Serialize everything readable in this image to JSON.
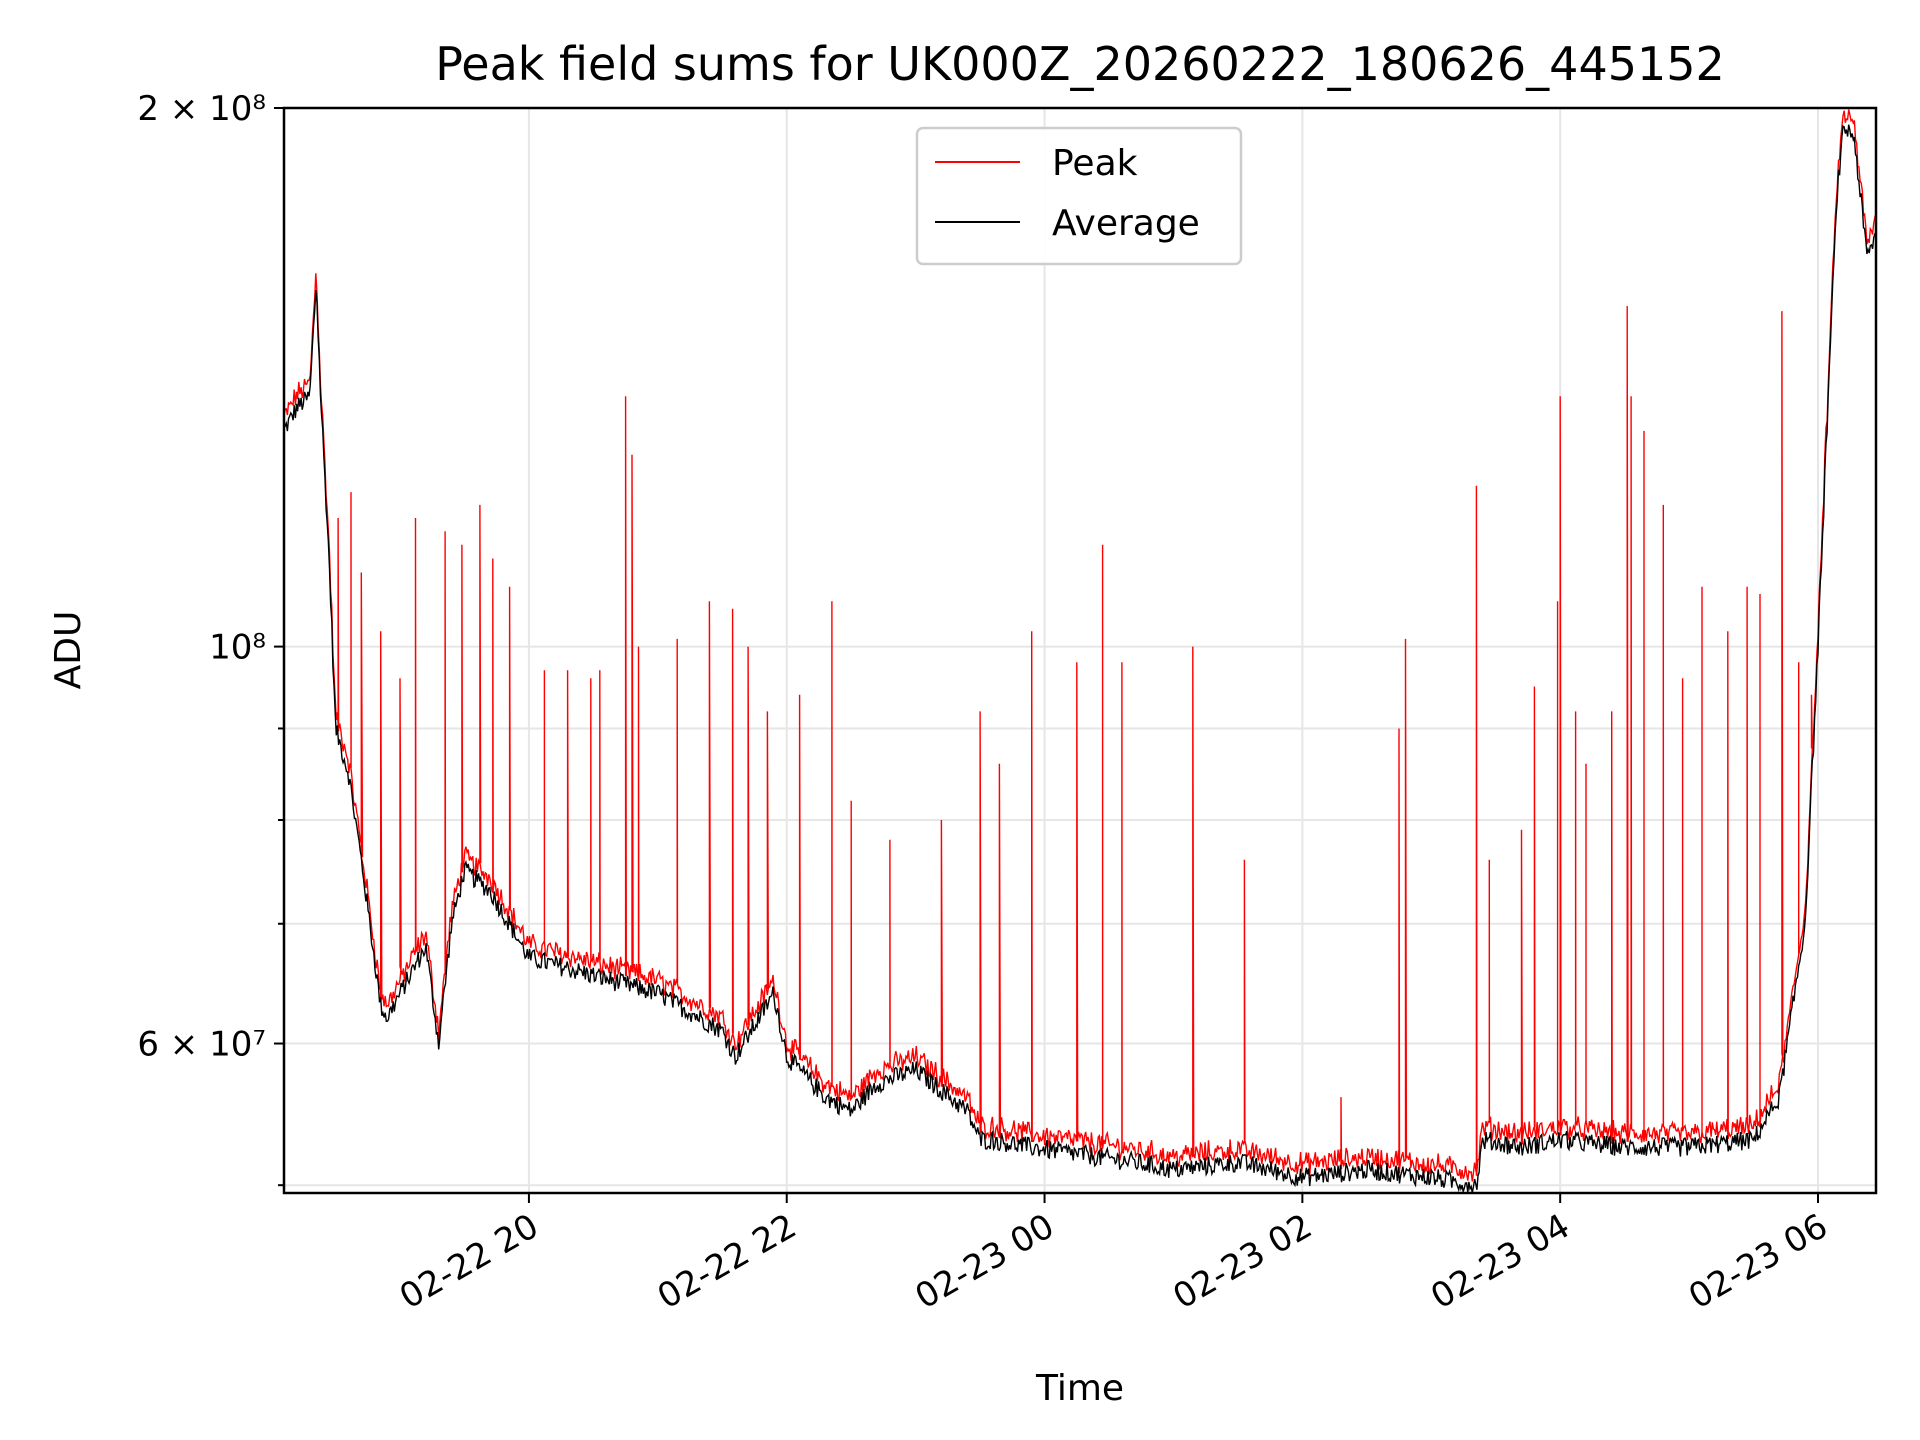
{
  "chart_data": {
    "type": "line",
    "title": "Peak field sums for UK000Z_20260222_180626_445152",
    "xlabel": "Time",
    "ylabel": "ADU",
    "yscale": "log",
    "ylim": [
      49500000,
      200000000
    ],
    "xlim_hours": [
      18.1,
      30.45
    ],
    "x_tick_labels": [
      {
        "h": 20,
        "label": "02-22 20"
      },
      {
        "h": 22,
        "label": "02-22 22"
      },
      {
        "h": 24,
        "label": "02-23 00"
      },
      {
        "h": 26,
        "label": "02-23 02"
      },
      {
        "h": 28,
        "label": "02-23 04"
      },
      {
        "h": 30,
        "label": "02-23 06"
      }
    ],
    "y_major_ticks": [
      {
        "v": 60000000,
        "label": "6 × 10⁷"
      },
      {
        "v": 100000000,
        "label": "10⁸"
      },
      {
        "v": 200000000,
        "label": "2 × 10⁸"
      }
    ],
    "y_minor_ticks": [
      50000000,
      70000000,
      80000000,
      90000000
    ],
    "legend": {
      "position": "upper center",
      "entries": [
        {
          "name": "Peak",
          "color": "#ff0000"
        },
        {
          "name": "Average",
          "color": "#000000"
        }
      ]
    },
    "series": [
      {
        "name": "Average",
        "color": "#000000",
        "x_hours": [
          18.1,
          18.2,
          18.3,
          18.35,
          18.38,
          18.45,
          18.5,
          18.6,
          18.7,
          18.85,
          18.9,
          19.0,
          19.2,
          19.3,
          19.4,
          19.5,
          19.7,
          20.0,
          20.5,
          21.0,
          21.5,
          21.6,
          21.9,
          22.0,
          22.1,
          22.3,
          22.5,
          22.7,
          23.0,
          23.4,
          23.5,
          23.6,
          23.9,
          24.3,
          24.7,
          25.0,
          25.5,
          26.0,
          26.5,
          27.0,
          27.35,
          27.4,
          27.7,
          28.0,
          28.5,
          29.0,
          29.5,
          29.7,
          29.9,
          30.0,
          30.1,
          30.15,
          30.2,
          30.28,
          30.38,
          30.45
        ],
        "values": [
          132000000,
          136000000,
          138000000,
          160000000,
          140000000,
          112000000,
          90000000,
          85000000,
          76000000,
          63000000,
          62000000,
          64000000,
          68000000,
          60000000,
          70000000,
          75000000,
          73000000,
          67000000,
          65500000,
          64000000,
          61000000,
          59000000,
          64000000,
          59000000,
          58000000,
          56000000,
          55000000,
          57000000,
          58000000,
          55000000,
          53000000,
          53000000,
          52500000,
          52000000,
          51500000,
          51000000,
          51500000,
          50500000,
          51000000,
          50500000,
          50000000,
          53000000,
          52500000,
          53000000,
          52500000,
          52500000,
          53000000,
          56000000,
          70000000,
          100000000,
          150000000,
          180000000,
          195000000,
          193000000,
          165000000,
          170000000
        ]
      },
      {
        "name": "Peak",
        "color": "#ff0000",
        "offset_ratio": 1.012,
        "spikes": [
          {
            "h": 18.52,
            "v": 118000000
          },
          {
            "h": 18.62,
            "v": 122000000
          },
          {
            "h": 18.7,
            "v": 110000000
          },
          {
            "h": 18.85,
            "v": 102000000
          },
          {
            "h": 19.0,
            "v": 96000000
          },
          {
            "h": 19.12,
            "v": 118000000
          },
          {
            "h": 19.35,
            "v": 116000000
          },
          {
            "h": 19.48,
            "v": 114000000
          },
          {
            "h": 19.62,
            "v": 120000000
          },
          {
            "h": 19.72,
            "v": 112000000
          },
          {
            "h": 19.85,
            "v": 108000000
          },
          {
            "h": 20.12,
            "v": 97000000
          },
          {
            "h": 20.3,
            "v": 97000000
          },
          {
            "h": 20.48,
            "v": 96000000
          },
          {
            "h": 20.55,
            "v": 97000000
          },
          {
            "h": 20.75,
            "v": 138000000
          },
          {
            "h": 20.8,
            "v": 128000000
          },
          {
            "h": 20.85,
            "v": 100000000
          },
          {
            "h": 21.15,
            "v": 101000000
          },
          {
            "h": 21.4,
            "v": 106000000
          },
          {
            "h": 21.58,
            "v": 105000000
          },
          {
            "h": 21.7,
            "v": 100000000
          },
          {
            "h": 21.85,
            "v": 92000000
          },
          {
            "h": 22.1,
            "v": 94000000
          },
          {
            "h": 22.35,
            "v": 106000000
          },
          {
            "h": 22.5,
            "v": 82000000
          },
          {
            "h": 22.8,
            "v": 78000000
          },
          {
            "h": 23.2,
            "v": 80000000
          },
          {
            "h": 23.5,
            "v": 92000000
          },
          {
            "h": 23.65,
            "v": 86000000
          },
          {
            "h": 23.9,
            "v": 102000000
          },
          {
            "h": 24.25,
            "v": 98000000
          },
          {
            "h": 24.45,
            "v": 114000000
          },
          {
            "h": 24.6,
            "v": 98000000
          },
          {
            "h": 25.15,
            "v": 100000000
          },
          {
            "h": 25.55,
            "v": 76000000
          },
          {
            "h": 26.3,
            "v": 56000000
          },
          {
            "h": 26.75,
            "v": 90000000
          },
          {
            "h": 26.8,
            "v": 101000000
          },
          {
            "h": 27.35,
            "v": 123000000
          },
          {
            "h": 27.45,
            "v": 76000000
          },
          {
            "h": 27.7,
            "v": 79000000
          },
          {
            "h": 27.8,
            "v": 95000000
          },
          {
            "h": 27.98,
            "v": 106000000
          },
          {
            "h": 28.0,
            "v": 138000000
          },
          {
            "h": 28.12,
            "v": 92000000
          },
          {
            "h": 28.2,
            "v": 86000000
          },
          {
            "h": 28.4,
            "v": 92000000
          },
          {
            "h": 28.52,
            "v": 155000000
          },
          {
            "h": 28.55,
            "v": 138000000
          },
          {
            "h": 28.65,
            "v": 132000000
          },
          {
            "h": 28.8,
            "v": 120000000
          },
          {
            "h": 28.95,
            "v": 96000000
          },
          {
            "h": 29.1,
            "v": 108000000
          },
          {
            "h": 29.3,
            "v": 102000000
          },
          {
            "h": 29.45,
            "v": 108000000
          },
          {
            "h": 29.55,
            "v": 107000000
          },
          {
            "h": 29.72,
            "v": 154000000
          },
          {
            "h": 29.85,
            "v": 98000000
          },
          {
            "h": 29.95,
            "v": 94000000
          }
        ]
      }
    ]
  }
}
